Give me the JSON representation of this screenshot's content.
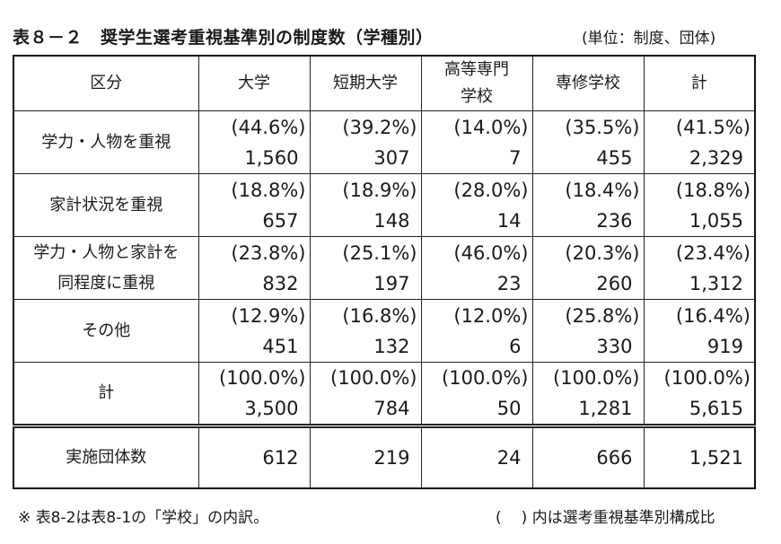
{
  "title": {
    "number": "表８－２",
    "text": "奨学生選考重視基準別の制度数（学種別）"
  },
  "unit": "(単位：制度、団体)",
  "table": {
    "headers": {
      "category": "区分",
      "university": "大学",
      "junior_college": "短期大学",
      "technical_college_line1": "高等専門",
      "technical_college_line2": "学校",
      "vocational_school": "専修学校",
      "total": "計"
    },
    "rows": [
      {
        "label_line1": "学力・人物を重視",
        "label_line2": "",
        "values": [
          {
            "pct": "(44.6%)",
            "count": "1,560"
          },
          {
            "pct": "(39.2%)",
            "count": "307"
          },
          {
            "pct": "(14.0%)",
            "count": "7"
          },
          {
            "pct": "(35.5%)",
            "count": "455"
          },
          {
            "pct": "(41.5%)",
            "count": "2,329"
          }
        ]
      },
      {
        "label_line1": "家計状況を重視",
        "label_line2": "",
        "values": [
          {
            "pct": "(18.8%)",
            "count": "657"
          },
          {
            "pct": "(18.9%)",
            "count": "148"
          },
          {
            "pct": "(28.0%)",
            "count": "14"
          },
          {
            "pct": "(18.4%)",
            "count": "236"
          },
          {
            "pct": "(18.8%)",
            "count": "1,055"
          }
        ]
      },
      {
        "label_line1": "学力・人物と家計を",
        "label_line2": "同程度に重視",
        "values": [
          {
            "pct": "(23.8%)",
            "count": "832"
          },
          {
            "pct": "(25.1%)",
            "count": "197"
          },
          {
            "pct": "(46.0%)",
            "count": "23"
          },
          {
            "pct": "(20.3%)",
            "count": "260"
          },
          {
            "pct": "(23.4%)",
            "count": "1,312"
          }
        ]
      },
      {
        "label_line1": "その他",
        "label_line2": "",
        "values": [
          {
            "pct": "(12.9%)",
            "count": "451"
          },
          {
            "pct": "(16.8%)",
            "count": "132"
          },
          {
            "pct": "(12.0%)",
            "count": "6"
          },
          {
            "pct": "(25.8%)",
            "count": "330"
          },
          {
            "pct": "(16.4%)",
            "count": "919"
          }
        ]
      },
      {
        "label_line1": "計",
        "label_line2": "",
        "values": [
          {
            "pct": "(100.0%)",
            "count": "3,500"
          },
          {
            "pct": "(100.0%)",
            "count": "784"
          },
          {
            "pct": "(100.0%)",
            "count": "50"
          },
          {
            "pct": "(100.0%)",
            "count": "1,281"
          },
          {
            "pct": "(100.0%)",
            "count": "5,615"
          }
        ]
      }
    ],
    "implementing_orgs": {
      "label": "実施団体数",
      "values": [
        "612",
        "219",
        "24",
        "666",
        "1,521"
      ]
    }
  },
  "notes": {
    "left": "※ 表8-2は表8-1の「学校」の内訳。",
    "right_open": "(",
    "right_close": ")",
    "right_text": "内は選考重視基準別構成比"
  }
}
